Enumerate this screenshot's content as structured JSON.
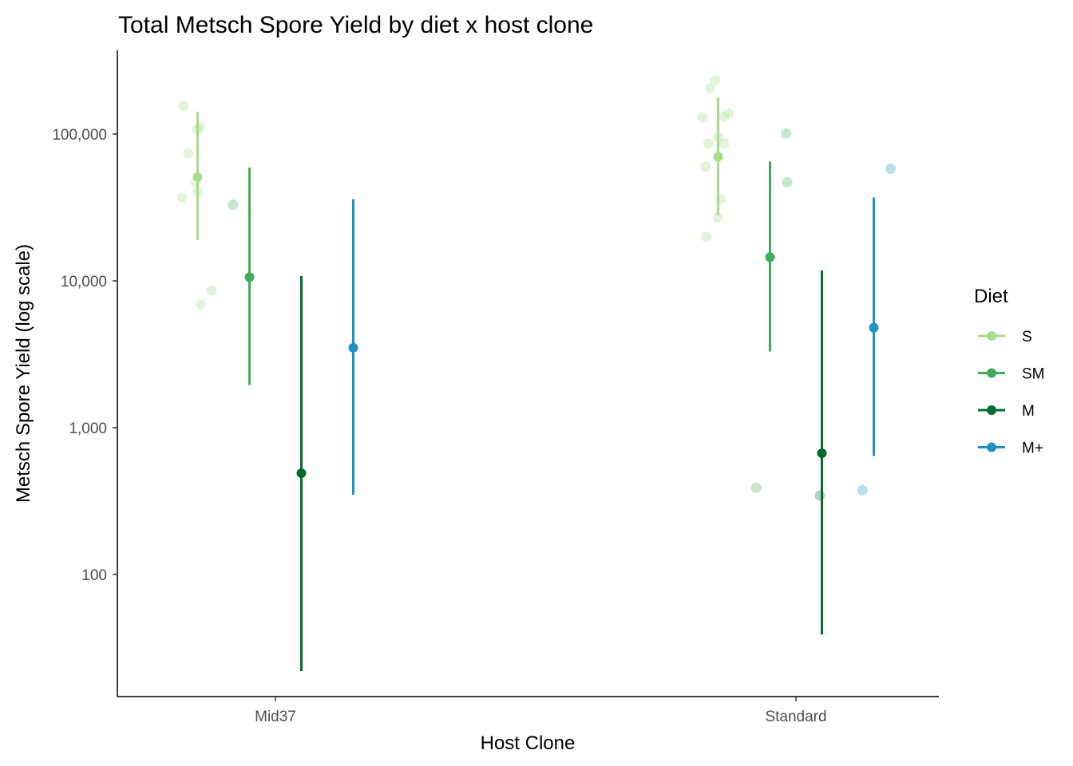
{
  "chart_data": {
    "type": "scatter",
    "title": "Total Metsch Spore Yield by diet x host clone",
    "xlabel": "Host Clone",
    "ylabel": "Metsch Spore Yield (log scale)",
    "y_scale": "log10",
    "ylim": [
      13,
      320000
    ],
    "y_ticks": [
      100,
      1000,
      10000,
      100000
    ],
    "y_tick_labels": [
      "100",
      "1,000",
      "10,000",
      "100,000"
    ],
    "categories": [
      "Mid37",
      "Standard"
    ],
    "grid": false,
    "legend": {
      "title": "Diet",
      "position": "right"
    },
    "series": [
      {
        "name": "S",
        "color": "#a6dc8a",
        "summary": [
          {
            "x": "Mid37",
            "mean": 51000,
            "lower": 19000,
            "upper": 142000
          },
          {
            "x": "Standard",
            "mean": 70000,
            "lower": 28000,
            "upper": 178000
          }
        ],
        "raw_points": [
          {
            "x": "Mid37",
            "y": 107000
          },
          {
            "x": "Mid37",
            "y": 112000
          },
          {
            "x": "Mid37",
            "y": 155000
          },
          {
            "x": "Mid37",
            "y": 74000
          },
          {
            "x": "Mid37",
            "y": 47000
          },
          {
            "x": "Mid37",
            "y": 40000
          },
          {
            "x": "Mid37",
            "y": 37000
          },
          {
            "x": "Mid37",
            "y": 8600
          },
          {
            "x": "Mid37",
            "y": 6900
          },
          {
            "x": "Standard",
            "y": 232000
          },
          {
            "x": "Standard",
            "y": 204000
          },
          {
            "x": "Standard",
            "y": 138000
          },
          {
            "x": "Standard",
            "y": 132000
          },
          {
            "x": "Standard",
            "y": 130000
          },
          {
            "x": "Standard",
            "y": 95000
          },
          {
            "x": "Standard",
            "y": 86000
          },
          {
            "x": "Standard",
            "y": 86000
          },
          {
            "x": "Standard",
            "y": 60000
          },
          {
            "x": "Standard",
            "y": 36000
          },
          {
            "x": "Standard",
            "y": 27000
          },
          {
            "x": "Standard",
            "y": 20000
          }
        ]
      },
      {
        "name": "SM",
        "color": "#41ab5d",
        "summary": [
          {
            "x": "Mid37",
            "mean": 10600,
            "lower": 1950,
            "upper": 59000
          },
          {
            "x": "Standard",
            "mean": 14500,
            "lower": 3300,
            "upper": 65000
          }
        ],
        "raw_points": [
          {
            "x": "Mid37",
            "y": 33000
          },
          {
            "x": "Standard",
            "y": 101000
          },
          {
            "x": "Standard",
            "y": 47000
          },
          {
            "x": "Standard",
            "y": 390
          }
        ]
      },
      {
        "name": "M",
        "color": "#006d2c",
        "summary": [
          {
            "x": "Mid37",
            "mean": 490,
            "lower": 22,
            "upper": 10800
          },
          {
            "x": "Standard",
            "mean": 670,
            "lower": 39,
            "upper": 11800
          }
        ],
        "raw_points": [
          {
            "x": "Standard",
            "y": 345
          }
        ]
      },
      {
        "name": "M+",
        "color": "#1d91c0",
        "summary": [
          {
            "x": "Mid37",
            "mean": 3500,
            "lower": 350,
            "upper": 36000
          },
          {
            "x": "Standard",
            "mean": 4800,
            "lower": 640,
            "upper": 37000
          }
        ],
        "raw_points": [
          {
            "x": "Standard",
            "y": 58000
          },
          {
            "x": "Standard",
            "y": 375
          }
        ]
      }
    ]
  }
}
